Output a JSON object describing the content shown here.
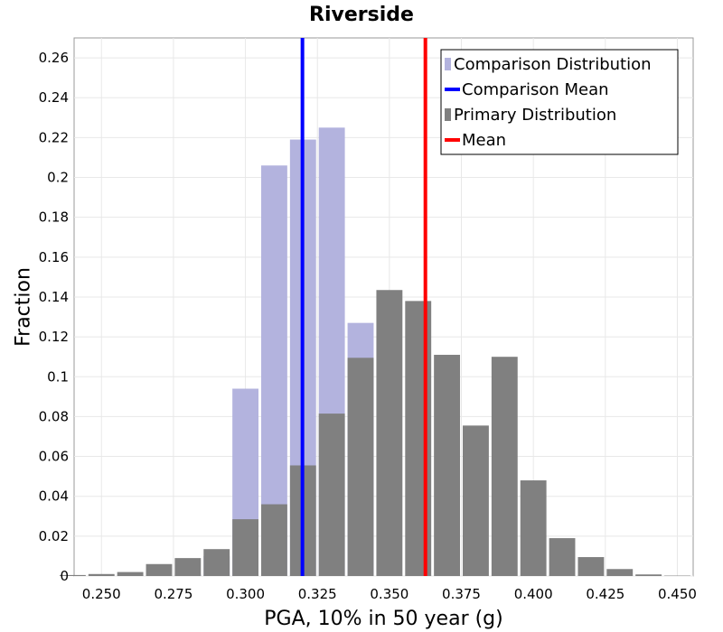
{
  "chart_data": {
    "type": "bar",
    "title": "Riverside",
    "xlabel": "PGA, 10% in 50 year (g)",
    "ylabel": "Fraction",
    "xlim": [
      0.2405,
      0.4555
    ],
    "ylim": [
      0,
      0.27
    ],
    "bin_width": 0.01,
    "x_ticks": [
      "0.250",
      "0.275",
      "0.300",
      "0.325",
      "0.350",
      "0.375",
      "0.400",
      "0.425",
      "0.450"
    ],
    "y_ticks": [
      "0",
      "0.02",
      "0.04",
      "0.06",
      "0.08",
      "0.1",
      "0.12",
      "0.14",
      "0.16",
      "0.18",
      "0.2",
      "0.22",
      "0.24",
      "0.26"
    ],
    "grid": true,
    "legend_position": "top-right",
    "series": [
      {
        "name": "Comparison Distribution",
        "kind": "bar",
        "color": "#b3b3de",
        "x": [
          0.25,
          0.26,
          0.27,
          0.28,
          0.29,
          0.3,
          0.31,
          0.32,
          0.33,
          0.34
        ],
        "values": [
          0.0,
          0.0,
          0.0,
          0.001,
          0.01,
          0.094,
          0.206,
          0.219,
          0.225,
          0.127
        ]
      },
      {
        "name": "Comparison Mean",
        "kind": "vline",
        "color": "#0000ff",
        "value": 0.3198
      },
      {
        "name": "Primary Distribution",
        "kind": "bar",
        "color": "#808080",
        "x": [
          0.24,
          0.25,
          0.26,
          0.27,
          0.28,
          0.29,
          0.3,
          0.31,
          0.32,
          0.33,
          0.34,
          0.35,
          0.36,
          0.37,
          0.38,
          0.39,
          0.4,
          0.41,
          0.42,
          0.43,
          0.44,
          0.45
        ],
        "values": [
          0.0005,
          0.001,
          0.002,
          0.006,
          0.009,
          0.0135,
          0.0285,
          0.036,
          0.0555,
          0.0815,
          0.1095,
          0.1435,
          0.138,
          0.111,
          0.0755,
          0.11,
          0.048,
          0.019,
          0.0095,
          0.0035,
          0.0008,
          0.0002
        ]
      },
      {
        "name": "Mean",
        "kind": "vline",
        "color": "#ff0000",
        "value": 0.3625
      }
    ]
  }
}
